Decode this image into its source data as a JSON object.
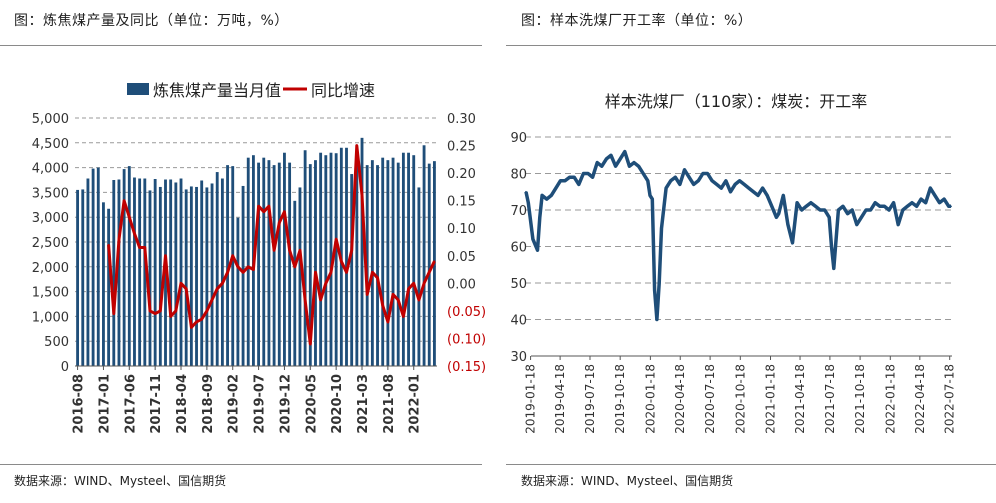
{
  "left": {
    "header": "图：炼焦煤产量及同比（单位：万吨，%）",
    "source": "数据来源：WIND、Mysteel、国信期货"
  },
  "right": {
    "header": "图：样本洗煤厂开工率（单位：%）",
    "source": "数据来源：WIND、Mysteel、国信期货"
  },
  "chart_data": [
    {
      "type": "bar",
      "title": "",
      "y_ticks": [
        "0",
        "500",
        "1,000",
        "1,500",
        "2,000",
        "2,500",
        "3,000",
        "3,500",
        "4,000",
        "4,500",
        "5,000"
      ],
      "y2_ticks": [
        "(0.15)",
        "(0.10)",
        "(0.05)",
        "0.00",
        "0.05",
        "0.10",
        "0.15",
        "0.20",
        "0.25",
        "0.30"
      ],
      "x_ticks": [
        "2016-08",
        "2017-01",
        "2017-06",
        "2017-11",
        "2018-04",
        "2018-09",
        "2019-02",
        "2019-07",
        "2019-12",
        "2020-05",
        "2020-10",
        "2021-03",
        "2021-08",
        "2022-01"
      ],
      "ylim": [
        0,
        5000
      ],
      "y2lim": [
        -0.15,
        0.3
      ],
      "grid": true,
      "legend": "top",
      "colors": {
        "bar": "#1f4e79",
        "line": "#c00000",
        "neg_tick": "#c00000"
      },
      "series": [
        {
          "name": "炼焦煤产量当月值",
          "type": "bar",
          "axis": "left",
          "values": [
            3550,
            3560,
            3780,
            3980,
            4000,
            3300,
            3170,
            3750,
            3760,
            3970,
            4030,
            3800,
            3780,
            3780,
            3540,
            3770,
            3610,
            3760,
            3760,
            3700,
            3780,
            3560,
            3620,
            3610,
            3740,
            3600,
            3680,
            3910,
            3780,
            4050,
            4030,
            2990,
            3630,
            4200,
            4250,
            4100,
            4200,
            4150,
            4050,
            4100,
            4300,
            4100,
            3330,
            3600,
            4350,
            4070,
            4150,
            4300,
            4250,
            4300,
            4290,
            4400,
            4400,
            3870,
            4150,
            4600,
            4050,
            4150,
            4050,
            4200,
            4150,
            4200,
            4100,
            4300,
            4300,
            4250,
            3600,
            4450,
            4080,
            4130
          ]
        },
        {
          "name": "同比增速",
          "type": "line",
          "axis": "right",
          "values": [
            null,
            null,
            null,
            null,
            null,
            null,
            0.07,
            -0.055,
            0.08,
            0.15,
            0.12,
            0.09,
            0.065,
            0.065,
            -0.05,
            -0.055,
            -0.05,
            0.05,
            -0.06,
            -0.05,
            0.0,
            -0.01,
            -0.08,
            -0.07,
            -0.065,
            -0.05,
            -0.03,
            -0.01,
            0.0,
            0.02,
            0.05,
            0.03,
            0.02,
            0.03,
            0.025,
            0.14,
            0.13,
            0.14,
            0.06,
            0.11,
            0.13,
            0.06,
            0.03,
            0.06,
            -0.03,
            -0.11,
            0.02,
            -0.03,
            0.0,
            0.02,
            0.08,
            0.04,
            0.02,
            0.06,
            0.25,
            0.16,
            -0.02,
            0.02,
            0.01,
            -0.04,
            -0.07,
            -0.02,
            -0.03,
            -0.06,
            -0.01,
            0.0,
            -0.03,
            0.0,
            0.02,
            0.04
          ]
        }
      ]
    },
    {
      "type": "line",
      "title": "样本洗煤厂（110家）：煤炭：开工率",
      "y_ticks": [
        "30",
        "40",
        "50",
        "60",
        "70",
        "80",
        "90"
      ],
      "ylim": [
        30,
        90
      ],
      "x_ticks": [
        "2019-01-18",
        "2019-04-18",
        "2019-07-18",
        "2019-10-18",
        "2020-01-18",
        "2020-04-18",
        "2020-07-18",
        "2020-10-18",
        "2021-01-18",
        "2021-04-18",
        "2021-07-18",
        "2021-10-18",
        "2022-01-18",
        "2022-04-18",
        "2022-07-18"
      ],
      "x": [
        "2019-01-04",
        "2019-01-11",
        "2019-01-25",
        "2019-02-08",
        "2019-02-15",
        "2019-02-22",
        "2019-03-08",
        "2019-03-22",
        "2019-04-05",
        "2019-04-19",
        "2019-05-03",
        "2019-05-17",
        "2019-05-31",
        "2019-06-14",
        "2019-06-28",
        "2019-07-12",
        "2019-07-26",
        "2019-08-09",
        "2019-08-23",
        "2019-09-06",
        "2019-09-20",
        "2019-10-04",
        "2019-10-18",
        "2019-11-01",
        "2019-11-15",
        "2019-11-29",
        "2019-12-13",
        "2019-12-27",
        "2020-01-10",
        "2020-01-17",
        "2020-01-24",
        "2020-01-31",
        "2020-02-07",
        "2020-02-14",
        "2020-02-21",
        "2020-03-06",
        "2020-03-20",
        "2020-04-03",
        "2020-04-17",
        "2020-05-01",
        "2020-05-15",
        "2020-05-29",
        "2020-06-12",
        "2020-06-26",
        "2020-07-10",
        "2020-07-24",
        "2020-08-07",
        "2020-08-21",
        "2020-09-04",
        "2020-09-18",
        "2020-10-02",
        "2020-10-16",
        "2020-10-30",
        "2020-11-13",
        "2020-11-27",
        "2020-12-11",
        "2020-12-25",
        "2021-01-08",
        "2021-01-22",
        "2021-02-05",
        "2021-02-12",
        "2021-02-26",
        "2021-03-12",
        "2021-03-26",
        "2021-04-09",
        "2021-04-23",
        "2021-05-07",
        "2021-05-21",
        "2021-06-04",
        "2021-06-18",
        "2021-07-02",
        "2021-07-16",
        "2021-07-23",
        "2021-07-30",
        "2021-08-13",
        "2021-08-27",
        "2021-09-10",
        "2021-09-24",
        "2021-10-08",
        "2021-10-22",
        "2021-11-05",
        "2021-11-19",
        "2021-12-03",
        "2021-12-17",
        "2021-12-31",
        "2022-01-14",
        "2022-01-28",
        "2022-02-11",
        "2022-02-25",
        "2022-03-11",
        "2022-03-25",
        "2022-04-08",
        "2022-04-22",
        "2022-05-06",
        "2022-05-20",
        "2022-06-03",
        "2022-06-17",
        "2022-07-01",
        "2022-07-15",
        "2022-07-22"
      ],
      "series": [
        {
          "name": "",
          "values": [
            75,
            72,
            62,
            59,
            68,
            74,
            73,
            74,
            76,
            78,
            78,
            79,
            79,
            77,
            80,
            80,
            79,
            83,
            82,
            84,
            85,
            82,
            84,
            86,
            82,
            83,
            82,
            80,
            78,
            74,
            73,
            48,
            40,
            50,
            65,
            76,
            78,
            79,
            77,
            81,
            79,
            77,
            78,
            80,
            80,
            78,
            77,
            76,
            78,
            75,
            77,
            78,
            77,
            76,
            75,
            74,
            76,
            74,
            71,
            68,
            69,
            74,
            66,
            61,
            72,
            70,
            71,
            72,
            71,
            70,
            70,
            68,
            60,
            54,
            70,
            71,
            69,
            70,
            66,
            68,
            70,
            70,
            72,
            71,
            71,
            70,
            72,
            66,
            70,
            71,
            72,
            71,
            73,
            72,
            76,
            74,
            72,
            73,
            71,
            71
          ]
        }
      ],
      "grid": true,
      "colors": {
        "line": "#1f4e79"
      }
    }
  ]
}
